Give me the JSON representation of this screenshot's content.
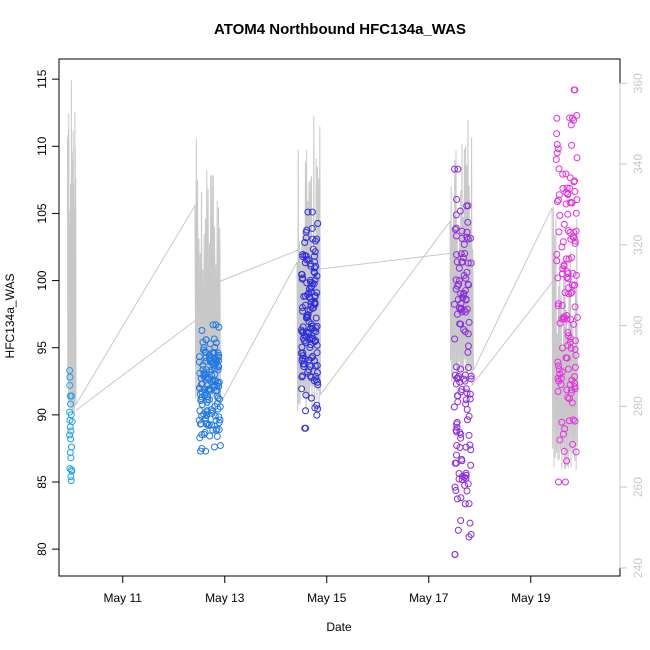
{
  "chart_data": {
    "type": "scatter",
    "title": "ATOM4 Northbound HFC134a_WAS",
    "xlabel": "Date",
    "ylabel": "HFC134a_WAS",
    "x_ticks": [
      "May 11",
      "May 13",
      "May 15",
      "May 17",
      "May 19"
    ],
    "y_ticks": [
      80,
      85,
      90,
      95,
      100,
      105,
      110,
      115
    ],
    "y_right_ticks": [
      240,
      260,
      280,
      300,
      320,
      340,
      360
    ],
    "xlim": [
      "2016-05-09 18:00",
      "2016-05-20 18:00"
    ],
    "ylim": [
      78.0,
      116.5
    ],
    "y_right_lim": [
      238.0,
      366.0
    ],
    "grid": false,
    "colors": {
      "axis": "#000000",
      "right_axis": "#c8c8c8",
      "secondary_line": "#c8c8c8",
      "cluster_1": "#1aa3e8",
      "cluster_2": "#1f78e6",
      "cluster_3": "#2d2de0",
      "cluster_4": "#8a2be2",
      "cluster_5": "#e62fe0"
    },
    "series": [
      {
        "color": "cluster_1",
        "x": [
          "2016-05-09 23:00",
          "2016-05-09 23:30",
          "2016-05-10 00:00",
          "2016-05-10 00:30",
          "2016-05-10 01:00",
          "2016-05-10 02:00"
        ],
        "y_range": [
          85.0,
          93.3
        ],
        "points": [
          [
            0.0,
            93.3
          ],
          [
            0.05,
            92.8
          ],
          [
            0.02,
            92.2
          ],
          [
            0.1,
            91.4
          ],
          [
            0.3,
            91.4
          ],
          [
            0.15,
            90.8
          ],
          [
            0.0,
            90.2
          ],
          [
            0.25,
            90.0
          ],
          [
            0.05,
            89.6
          ],
          [
            0.4,
            89.5
          ],
          [
            0.1,
            89.1
          ],
          [
            0.2,
            88.8
          ],
          [
            0.0,
            88.5
          ],
          [
            0.15,
            88.2
          ],
          [
            0.3,
            87.6
          ],
          [
            0.1,
            87.2
          ],
          [
            0.2,
            86.8
          ],
          [
            0.05,
            86.0
          ],
          [
            0.3,
            85.9
          ],
          [
            0.2,
            85.4
          ],
          [
            0.35,
            85.8
          ],
          [
            0.25,
            85.1
          ]
        ]
      },
      {
        "color": "cluster_2",
        "x_range": [
          "2016-05-12 12:00",
          "2016-05-12 22:00"
        ],
        "y_range": [
          87.3,
          96.7
        ]
      },
      {
        "color": "cluster_3",
        "x_range": [
          "2016-05-14 12:00",
          "2016-05-14 20:00"
        ],
        "y_range": [
          89.0,
          105.1
        ]
      },
      {
        "color": "cluster_4",
        "x_range": [
          "2016-05-17 12:00",
          "2016-05-17 20:00"
        ],
        "y_range": [
          79.6,
          108.3
        ]
      },
      {
        "color": "cluster_5",
        "x_range": [
          "2016-05-19 12:00",
          "2016-05-19 22:00"
        ],
        "y_range": [
          85.0,
          114.2
        ]
      }
    ],
    "secondary_axis": {
      "side": "right",
      "series_color": "secondary_line",
      "bursts": [
        {
          "x_range": [
            "2016-05-09 22:00",
            "2016-05-10 02:00"
          ],
          "y_min": 278,
          "y_max": 362
        },
        {
          "x_range": [
            "2016-05-12 10:00",
            "2016-05-12 22:00"
          ],
          "y_min": 278,
          "y_max": 350
        },
        {
          "x_range": [
            "2016-05-14 10:00",
            "2016-05-14 21:00"
          ],
          "y_min": 278,
          "y_max": 353
        },
        {
          "x_range": [
            "2016-05-17 10:00",
            "2016-05-17 21:00"
          ],
          "y_min": 285,
          "y_max": 352
        },
        {
          "x_range": [
            "2016-05-19 10:00",
            "2016-05-19 22:00"
          ],
          "y_min": 264,
          "y_max": 330
        }
      ]
    }
  }
}
